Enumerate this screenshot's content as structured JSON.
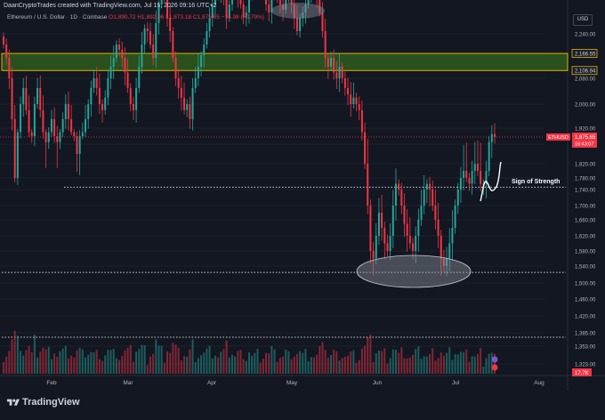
{
  "header": {
    "attribution": "DaanCryptoTrades created with TradingView.com, Jul 15, 2026 09:16 UTC+2",
    "symbol_info": "Ethereum / U.S. Dollar · 1D · Coinbase",
    "ohlc": "O1,890.72 H1,892.06 L1,873.18 C1,875.65 −14.98 (−0.79%)",
    "currency": "USD"
  },
  "footer": {
    "brand": "TradingView"
  },
  "annotations": {
    "strength_label": "Sign of Strength"
  },
  "colors": {
    "up": "#26a69a",
    "down": "#f23645",
    "zone_fill": "#2e5a1c",
    "zone_border": "#e2b200",
    "background": "#131722"
  },
  "chart_data": {
    "type": "candlestick",
    "symbol": "ETHUSD",
    "y_axis": {
      "ticks": [
        "2,240.00",
        "2,160.00",
        "2,080.00",
        "2,000.00",
        "1,920.00",
        "1,840.00",
        "1,820.00",
        "1,780.00",
        "1,740.00",
        "1,700.00",
        "1,660.00",
        "1,620.00",
        "1,580.00",
        "1,540.00",
        "1,500.00",
        "1,460.00",
        "1,420.00",
        "1,385.00",
        "1,353.00",
        "1,323.00"
      ],
      "tick_values": [
        2240,
        2160,
        2080,
        2000,
        1920,
        1840,
        1820,
        1780,
        1740,
        1700,
        1660,
        1620,
        1580,
        1540,
        1500,
        1460,
        1420,
        1385,
        1353,
        1323
      ]
    },
    "x_axis": {
      "labels": [
        "Feb",
        "Mar",
        "Apr",
        "May",
        "Jun",
        "Jul",
        "Aug"
      ]
    },
    "price_tags": [
      {
        "value": 2166.55,
        "label": "2,166.55"
      },
      {
        "value": 2106.94,
        "label": "2,106.94"
      },
      {
        "value": 1875.65,
        "label": "1,875.65",
        "symbol": "ETHUSD",
        "countdown": "16:43:07"
      }
    ],
    "volume_tag": "17.7K",
    "resistance_zone": [
      2106.94,
      2166.55
    ],
    "support_level": 1748,
    "range_low_level": 1525,
    "series": {
      "name": "ETHUSD",
      "close": [
        2200,
        2150,
        2080,
        1950,
        1780,
        1900,
        2000,
        2050,
        1980,
        1900,
        1880,
        2000,
        2050,
        1980,
        1900,
        1850,
        1900,
        1950,
        1880,
        1850,
        1900,
        1950,
        2000,
        1950,
        1900,
        1880,
        1830,
        1880,
        1900,
        1950,
        2000,
        2050,
        2080,
        2050,
        2000,
        1980,
        2020,
        2080,
        2120,
        2150,
        2200,
        2180,
        2150,
        2100,
        2050,
        2000,
        1980,
        2050,
        2120,
        2200,
        2260,
        2250,
        2200,
        2150,
        2280,
        2350,
        2400,
        2380,
        2300,
        2250,
        2150,
        2080,
        2050,
        2020,
        1980,
        2000,
        1950,
        2050,
        2080,
        2120,
        2160,
        2200,
        2250,
        2300,
        2350,
        2400,
        2380,
        2420,
        2380,
        2300,
        2350,
        2400,
        2420,
        2380,
        2350,
        2300,
        2320,
        2380,
        2400,
        2420,
        2450,
        2430,
        2400,
        2350,
        2320,
        2380,
        2400,
        2380,
        2350,
        2330,
        2380,
        2400,
        2350,
        2300,
        2250,
        2300,
        2320,
        2350,
        2380,
        2420,
        2400,
        2380,
        2320,
        2250,
        2150,
        2120,
        2150,
        2100,
        2080,
        2120,
        2080,
        2050,
        2030,
        2000,
        2020,
        2000,
        1980,
        1900,
        1820,
        1700,
        1580,
        1560,
        1620,
        1680,
        1640,
        1600,
        1580,
        1620,
        1700,
        1760,
        1740,
        1700,
        1650,
        1620,
        1600,
        1580,
        1620,
        1660,
        1700,
        1740,
        1760,
        1740,
        1700,
        1660,
        1620,
        1560,
        1540,
        1560,
        1600,
        1640,
        1700,
        1740,
        1780,
        1800,
        1780,
        1760,
        1800,
        1820,
        1800,
        1760,
        1760,
        1800,
        1850,
        1890,
        1876
      ]
    }
  }
}
